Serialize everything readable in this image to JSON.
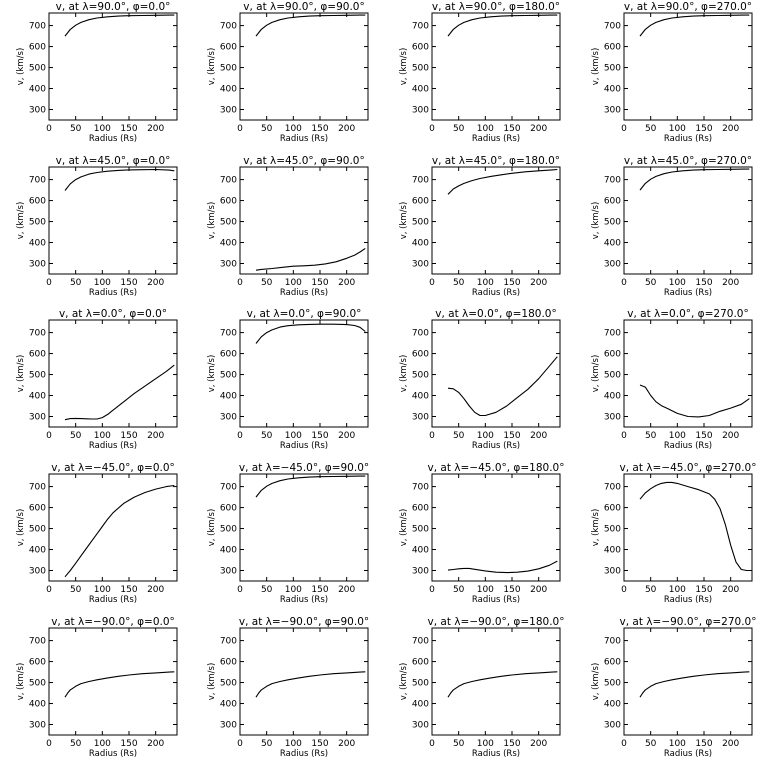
{
  "chart_data": [
    {
      "type": "line",
      "title": "v, at λ=90.0°, φ=0.0°",
      "xlabel": "Radius (Rs)",
      "ylabel": "v, (km/s)",
      "xlim": [
        0,
        240
      ],
      "ylim": [
        250,
        760
      ],
      "x_ticks": [
        0,
        50,
        100,
        150,
        200
      ],
      "y_ticks": [
        300,
        400,
        500,
        600,
        700
      ],
      "series": [
        {
          "x": [
            30,
            40,
            50,
            60,
            75,
            90,
            110,
            130,
            150,
            175,
            200,
            225,
            235
          ],
          "values": [
            650,
            682,
            702,
            715,
            728,
            736,
            742,
            745,
            747,
            748,
            749,
            750,
            750
          ]
        }
      ]
    },
    {
      "type": "line",
      "title": "v, at λ=90.0°, φ=90.0°",
      "xlabel": "Radius (Rs)",
      "ylabel": "v, (km/s)",
      "xlim": [
        0,
        240
      ],
      "ylim": [
        250,
        760
      ],
      "x_ticks": [
        0,
        50,
        100,
        150,
        200
      ],
      "y_ticks": [
        300,
        400,
        500,
        600,
        700
      ],
      "series": [
        {
          "x": [
            30,
            40,
            50,
            60,
            75,
            90,
            110,
            130,
            150,
            175,
            200,
            225,
            235
          ],
          "values": [
            650,
            682,
            702,
            715,
            728,
            736,
            742,
            745,
            747,
            748,
            749,
            750,
            750
          ]
        }
      ]
    },
    {
      "type": "line",
      "title": "v, at λ=90.0°, φ=180.0°",
      "xlabel": "Radius (Rs)",
      "ylabel": "v, (km/s)",
      "xlim": [
        0,
        240
      ],
      "ylim": [
        250,
        760
      ],
      "x_ticks": [
        0,
        50,
        100,
        150,
        200
      ],
      "y_ticks": [
        300,
        400,
        500,
        600,
        700
      ],
      "series": [
        {
          "x": [
            30,
            40,
            50,
            60,
            75,
            90,
            110,
            130,
            150,
            175,
            200,
            225,
            235
          ],
          "values": [
            650,
            682,
            702,
            715,
            728,
            736,
            742,
            745,
            747,
            748,
            749,
            750,
            750
          ]
        }
      ]
    },
    {
      "type": "line",
      "title": "v, at λ=90.0°, φ=270.0°",
      "xlabel": "Radius (Rs)",
      "ylabel": "v, (km/s)",
      "xlim": [
        0,
        240
      ],
      "ylim": [
        250,
        760
      ],
      "x_ticks": [
        0,
        50,
        100,
        150,
        200
      ],
      "y_ticks": [
        300,
        400,
        500,
        600,
        700
      ],
      "series": [
        {
          "x": [
            30,
            40,
            50,
            60,
            75,
            90,
            110,
            130,
            150,
            175,
            200,
            225,
            235
          ],
          "values": [
            650,
            682,
            702,
            715,
            728,
            736,
            742,
            745,
            747,
            748,
            749,
            750,
            750
          ]
        }
      ]
    },
    {
      "type": "line",
      "title": "v, at λ=45.0°, φ=0.0°",
      "xlabel": "Radius (Rs)",
      "ylabel": "v, (km/s)",
      "xlim": [
        0,
        240
      ],
      "ylim": [
        250,
        760
      ],
      "x_ticks": [
        0,
        50,
        100,
        150,
        200
      ],
      "y_ticks": [
        300,
        400,
        500,
        600,
        700
      ],
      "series": [
        {
          "x": [
            30,
            40,
            50,
            60,
            75,
            90,
            110,
            130,
            150,
            175,
            200,
            225,
            235
          ],
          "values": [
            648,
            680,
            700,
            713,
            726,
            734,
            740,
            744,
            746,
            747,
            748,
            745,
            742
          ]
        }
      ]
    },
    {
      "type": "line",
      "title": "v, at λ=45.0°, φ=90.0°",
      "xlabel": "Radius (Rs)",
      "ylabel": "v, (km/s)",
      "xlim": [
        0,
        240
      ],
      "ylim": [
        250,
        760
      ],
      "x_ticks": [
        0,
        50,
        100,
        150,
        200
      ],
      "y_ticks": [
        300,
        400,
        500,
        600,
        700
      ],
      "series": [
        {
          "x": [
            30,
            40,
            60,
            80,
            100,
            120,
            140,
            160,
            180,
            200,
            215,
            225,
            235
          ],
          "values": [
            268,
            272,
            276,
            282,
            287,
            289,
            292,
            298,
            308,
            325,
            340,
            355,
            372
          ]
        }
      ]
    },
    {
      "type": "line",
      "title": "v, at λ=45.0°, φ=180.0°",
      "xlabel": "Radius (Rs)",
      "ylabel": "v, (km/s)",
      "xlim": [
        0,
        240
      ],
      "ylim": [
        250,
        760
      ],
      "x_ticks": [
        0,
        50,
        100,
        150,
        200
      ],
      "y_ticks": [
        300,
        400,
        500,
        600,
        700
      ],
      "series": [
        {
          "x": [
            30,
            40,
            50,
            60,
            75,
            90,
            110,
            130,
            150,
            175,
            200,
            225,
            235
          ],
          "values": [
            630,
            655,
            670,
            682,
            695,
            705,
            715,
            723,
            730,
            737,
            742,
            746,
            748
          ]
        }
      ]
    },
    {
      "type": "line",
      "title": "v, at λ=45.0°, φ=270.0°",
      "xlabel": "Radius (Rs)",
      "ylabel": "v, (km/s)",
      "xlim": [
        0,
        240
      ],
      "ylim": [
        250,
        760
      ],
      "x_ticks": [
        0,
        50,
        100,
        150,
        200
      ],
      "y_ticks": [
        300,
        400,
        500,
        600,
        700
      ],
      "series": [
        {
          "x": [
            30,
            40,
            50,
            60,
            75,
            90,
            110,
            130,
            150,
            175,
            200,
            225,
            235
          ],
          "values": [
            650,
            682,
            702,
            715,
            728,
            736,
            742,
            745,
            747,
            748,
            749,
            750,
            750
          ]
        }
      ]
    },
    {
      "type": "line",
      "title": "v, at λ=0.0°, φ=0.0°",
      "xlabel": "Radius (Rs)",
      "ylabel": "v, (km/s)",
      "xlim": [
        0,
        240
      ],
      "ylim": [
        250,
        760
      ],
      "x_ticks": [
        0,
        50,
        100,
        150,
        200
      ],
      "y_ticks": [
        300,
        400,
        500,
        600,
        700
      ],
      "series": [
        {
          "x": [
            30,
            40,
            50,
            60,
            70,
            80,
            90,
            100,
            110,
            120,
            140,
            160,
            180,
            200,
            220,
            235
          ],
          "values": [
            285,
            290,
            291,
            290,
            289,
            288,
            288,
            295,
            310,
            330,
            370,
            410,
            445,
            480,
            515,
            545
          ]
        }
      ]
    },
    {
      "type": "line",
      "title": "v, at λ=0.0°, φ=90.0°",
      "xlabel": "Radius (Rs)",
      "ylabel": "v, (km/s)",
      "xlim": [
        0,
        240
      ],
      "ylim": [
        250,
        760
      ],
      "x_ticks": [
        0,
        50,
        100,
        150,
        200
      ],
      "y_ticks": [
        300,
        400,
        500,
        600,
        700
      ],
      "series": [
        {
          "x": [
            30,
            40,
            50,
            60,
            75,
            90,
            110,
            130,
            150,
            175,
            200,
            215,
            225,
            235
          ],
          "values": [
            648,
            680,
            700,
            713,
            726,
            733,
            737,
            739,
            740,
            740,
            738,
            734,
            725,
            705
          ]
        }
      ]
    },
    {
      "type": "line",
      "title": "v, at λ=0.0°, φ=180.0°",
      "xlabel": "Radius (Rs)",
      "ylabel": "v, (km/s)",
      "xlim": [
        0,
        240
      ],
      "ylim": [
        250,
        760
      ],
      "x_ticks": [
        0,
        50,
        100,
        150,
        200
      ],
      "y_ticks": [
        300,
        400,
        500,
        600,
        700
      ],
      "series": [
        {
          "x": [
            30,
            40,
            50,
            60,
            70,
            80,
            90,
            100,
            120,
            140,
            160,
            180,
            200,
            220,
            235
          ],
          "values": [
            435,
            432,
            415,
            385,
            350,
            320,
            305,
            305,
            320,
            350,
            390,
            430,
            480,
            540,
            585
          ]
        }
      ]
    },
    {
      "type": "line",
      "title": "v, at λ=0.0°, φ=270.0°",
      "xlabel": "Radius (Rs)",
      "ylabel": "v, (km/s)",
      "xlim": [
        0,
        240
      ],
      "ylim": [
        250,
        760
      ],
      "x_ticks": [
        0,
        50,
        100,
        150,
        200
      ],
      "y_ticks": [
        300,
        400,
        500,
        600,
        700
      ],
      "series": [
        {
          "x": [
            30,
            40,
            50,
            60,
            70,
            80,
            100,
            120,
            140,
            160,
            180,
            200,
            220,
            235
          ],
          "values": [
            450,
            440,
            400,
            370,
            352,
            340,
            315,
            300,
            298,
            305,
            325,
            340,
            358,
            385
          ]
        }
      ]
    },
    {
      "type": "line",
      "title": "v, at λ=−45.0°, φ=0.0°",
      "xlabel": "Radius (Rs)",
      "ylabel": "v, (km/s)",
      "xlim": [
        0,
        240
      ],
      "ylim": [
        250,
        760
      ],
      "x_ticks": [
        0,
        50,
        100,
        150,
        200
      ],
      "y_ticks": [
        300,
        400,
        500,
        600,
        700
      ],
      "series": [
        {
          "x": [
            30,
            40,
            50,
            60,
            70,
            80,
            90,
            100,
            110,
            120,
            140,
            160,
            180,
            200,
            220,
            235
          ],
          "values": [
            270,
            300,
            335,
            370,
            405,
            440,
            475,
            510,
            545,
            575,
            620,
            650,
            672,
            688,
            700,
            705
          ]
        }
      ]
    },
    {
      "type": "line",
      "title": "v, at λ=−45.0°, φ=90.0°",
      "xlabel": "Radius (Rs)",
      "ylabel": "v, (km/s)",
      "xlim": [
        0,
        240
      ],
      "ylim": [
        250,
        760
      ],
      "x_ticks": [
        0,
        50,
        100,
        150,
        200
      ],
      "y_ticks": [
        300,
        400,
        500,
        600,
        700
      ],
      "series": [
        {
          "x": [
            30,
            40,
            50,
            60,
            75,
            90,
            110,
            130,
            150,
            175,
            200,
            225,
            235
          ],
          "values": [
            650,
            682,
            702,
            715,
            728,
            736,
            742,
            745,
            747,
            748,
            749,
            750,
            750
          ]
        }
      ]
    },
    {
      "type": "line",
      "title": "v, at λ=−45.0°, φ=180.0°",
      "xlabel": "Radius (Rs)",
      "ylabel": "v, (km/s)",
      "xlim": [
        0,
        240
      ],
      "ylim": [
        250,
        760
      ],
      "x_ticks": [
        0,
        50,
        100,
        150,
        200
      ],
      "y_ticks": [
        300,
        400,
        500,
        600,
        700
      ],
      "series": [
        {
          "x": [
            30,
            40,
            50,
            60,
            70,
            80,
            100,
            120,
            140,
            160,
            180,
            200,
            220,
            235
          ],
          "values": [
            302,
            305,
            308,
            310,
            310,
            306,
            298,
            292,
            290,
            292,
            297,
            308,
            325,
            345
          ]
        }
      ]
    },
    {
      "type": "line",
      "title": "v, at λ=−45.0°, φ=270.0°",
      "xlabel": "Radius (Rs)",
      "ylabel": "v, (km/s)",
      "xlim": [
        0,
        240
      ],
      "ylim": [
        250,
        760
      ],
      "x_ticks": [
        0,
        50,
        100,
        150,
        200
      ],
      "y_ticks": [
        300,
        400,
        500,
        600,
        700
      ],
      "series": [
        {
          "x": [
            30,
            40,
            50,
            60,
            70,
            80,
            90,
            100,
            120,
            140,
            160,
            170,
            180,
            190,
            200,
            210,
            220,
            230,
            235
          ],
          "values": [
            640,
            670,
            690,
            705,
            715,
            720,
            720,
            715,
            700,
            685,
            665,
            640,
            595,
            520,
            420,
            340,
            305,
            300,
            300
          ]
        }
      ]
    },
    {
      "type": "line",
      "title": "v, at λ=−90.0°, φ=0.0°",
      "xlabel": "Radius (Rs)",
      "ylabel": "v, (km/s)",
      "xlim": [
        0,
        240
      ],
      "ylim": [
        250,
        760
      ],
      "x_ticks": [
        0,
        50,
        100,
        150,
        200
      ],
      "y_ticks": [
        300,
        400,
        500,
        600,
        700
      ],
      "series": [
        {
          "x": [
            30,
            35,
            40,
            50,
            60,
            75,
            90,
            110,
            130,
            150,
            175,
            200,
            225,
            235
          ],
          "values": [
            430,
            450,
            465,
            482,
            495,
            505,
            513,
            522,
            530,
            536,
            542,
            546,
            550,
            551
          ]
        }
      ]
    },
    {
      "type": "line",
      "title": "v, at λ=−90.0°, φ=90.0°",
      "xlabel": "Radius (Rs)",
      "ylabel": "v, (km/s)",
      "xlim": [
        0,
        240
      ],
      "ylim": [
        250,
        760
      ],
      "x_ticks": [
        0,
        50,
        100,
        150,
        200
      ],
      "y_ticks": [
        300,
        400,
        500,
        600,
        700
      ],
      "series": [
        {
          "x": [
            30,
            35,
            40,
            50,
            60,
            75,
            90,
            110,
            130,
            150,
            175,
            200,
            225,
            235
          ],
          "values": [
            430,
            450,
            465,
            482,
            495,
            505,
            513,
            522,
            530,
            536,
            542,
            546,
            550,
            551
          ]
        }
      ]
    },
    {
      "type": "line",
      "title": "v, at λ=−90.0°, φ=180.0°",
      "xlabel": "Radius (Rs)",
      "ylabel": "v, (km/s)",
      "xlim": [
        0,
        240
      ],
      "ylim": [
        250,
        760
      ],
      "x_ticks": [
        0,
        50,
        100,
        150,
        200
      ],
      "y_ticks": [
        300,
        400,
        500,
        600,
        700
      ],
      "series": [
        {
          "x": [
            30,
            35,
            40,
            50,
            60,
            75,
            90,
            110,
            130,
            150,
            175,
            200,
            225,
            235
          ],
          "values": [
            430,
            450,
            465,
            482,
            495,
            505,
            513,
            522,
            530,
            536,
            542,
            546,
            550,
            551
          ]
        }
      ]
    },
    {
      "type": "line",
      "title": "v, at λ=−90.0°, φ=270.0°",
      "xlabel": "Radius (Rs)",
      "ylabel": "v, (km/s)",
      "xlim": [
        0,
        240
      ],
      "ylim": [
        250,
        760
      ],
      "x_ticks": [
        0,
        50,
        100,
        150,
        200
      ],
      "y_ticks": [
        300,
        400,
        500,
        600,
        700
      ],
      "series": [
        {
          "x": [
            30,
            35,
            40,
            50,
            60,
            75,
            90,
            110,
            130,
            150,
            175,
            200,
            225,
            235
          ],
          "values": [
            430,
            450,
            465,
            482,
            495,
            505,
            513,
            522,
            530,
            536,
            542,
            546,
            550,
            551
          ]
        }
      ]
    }
  ]
}
